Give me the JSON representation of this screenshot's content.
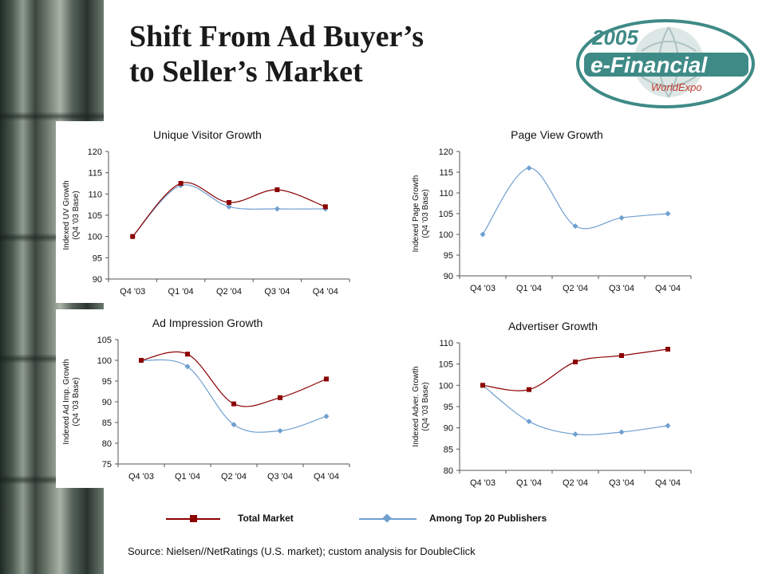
{
  "slide": {
    "title_line1": "Shift From Ad Buyer’s",
    "title_line2": "to Seller’s Market",
    "source": "Source: Nielsen//NetRatings (U.S. market); custom analysis for DoubleClick"
  },
  "logo": {
    "year": "2005",
    "name": "e-Financial",
    "sub": "WorldExpo",
    "colors": {
      "teal": "#3e8a86",
      "yellow": "#f2d600",
      "red": "#c0392b"
    }
  },
  "legend": {
    "items": [
      {
        "label": "Total Market",
        "color": "#8b0000",
        "marker": "square"
      },
      {
        "label": "Among Top 20 Publishers",
        "color": "#6f9fd0",
        "marker": "diamond"
      }
    ]
  },
  "chart_data": [
    {
      "type": "line",
      "title": "Unique Visitor Growth",
      "ylabel_lines": [
        "Indexed UV Growth",
        "(Q4 '03 Base)"
      ],
      "categories": [
        "Q4 '03",
        "Q1 '04",
        "Q2 '04",
        "Q3 '04",
        "Q4 '04"
      ],
      "ylim": [
        90,
        120
      ],
      "yticks": [
        90,
        95,
        100,
        105,
        110,
        115,
        120
      ],
      "series": [
        {
          "name": "Total Market",
          "values": [
            100,
            112.5,
            108,
            111,
            107
          ]
        },
        {
          "name": "Among Top 20 Publishers",
          "values": [
            100,
            112,
            107,
            106.5,
            106.5
          ]
        }
      ]
    },
    {
      "type": "line",
      "title": "Page View Growth",
      "ylabel_lines": [
        "Indexed Page Growth",
        "(Q4 '03 Base)"
      ],
      "categories": [
        "Q4 '03",
        "Q1 '04",
        "Q2 '04",
        "Q3 '04",
        "Q4 '04"
      ],
      "ylim": [
        90,
        120
      ],
      "yticks": [
        90,
        95,
        100,
        105,
        110,
        115,
        120
      ],
      "series": [
        {
          "name": "Among Top 20 Publishers",
          "values": [
            100,
            116,
            102,
            104,
            105
          ]
        }
      ]
    },
    {
      "type": "line",
      "title": "Ad Impression Growth",
      "ylabel_lines": [
        "Indexed Ad Imp. Growth",
        "(Q4 '03 Base)"
      ],
      "categories": [
        "Q4 '03",
        "Q1 '04",
        "Q2 '04",
        "Q3 '04",
        "Q4 '04"
      ],
      "ylim": [
        75,
        105
      ],
      "yticks": [
        75,
        80,
        85,
        90,
        95,
        100,
        105
      ],
      "series": [
        {
          "name": "Total Market",
          "values": [
            100,
            101.5,
            89.5,
            91,
            95.5
          ]
        },
        {
          "name": "Among Top 20 Publishers",
          "values": [
            100,
            98.5,
            84.5,
            83,
            86.5
          ]
        }
      ]
    },
    {
      "type": "line",
      "title": "Advertiser Growth",
      "ylabel_lines": [
        "Indexed Adver. Growth",
        "(Q4 '03 Base)"
      ],
      "categories": [
        "Q4 '03",
        "Q1 '04",
        "Q2 '04",
        "Q3 '04",
        "Q4 '04"
      ],
      "ylim": [
        80,
        110
      ],
      "yticks": [
        80,
        85,
        90,
        95,
        100,
        105,
        110
      ],
      "series": [
        {
          "name": "Total Market",
          "values": [
            100,
            99,
            105.5,
            107,
            108.5
          ]
        },
        {
          "name": "Among Top 20 Publishers",
          "values": [
            100,
            91.5,
            88.5,
            89,
            90.5
          ]
        }
      ]
    }
  ]
}
